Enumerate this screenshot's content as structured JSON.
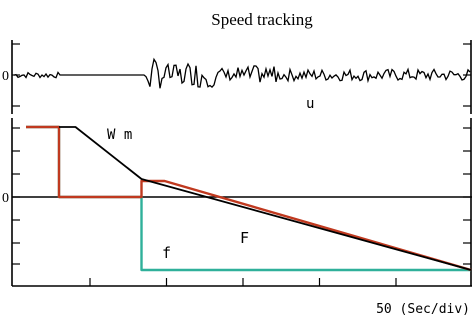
{
  "chart_data": {
    "type": "line",
    "title": "Speed tracking",
    "x_scale_label": "50 (Sec/div)",
    "y_tick_labels": [
      "0",
      "0"
    ],
    "x_divisions": 8,
    "series": [
      {
        "name": "Wm",
        "color": "#000000",
        "x": [
          0,
          0.25,
          1.25,
          7.55,
          8
        ],
        "y": [
          0.7,
          0.7,
          0.18,
          -0.73,
          -0.73
        ]
      },
      {
        "name": "F",
        "color": "#c0391f",
        "x": [
          -0.5,
          0,
          0,
          1.25,
          1.25,
          1.6,
          7.55,
          8
        ],
        "y": [
          0.7,
          0.7,
          0,
          0,
          0.16,
          0.16,
          -0.73,
          -0.73
        ]
      },
      {
        "name": "f",
        "color": "#2fb09a",
        "x": [
          -0.5,
          0,
          0,
          1.25,
          1.25,
          8
        ],
        "y": [
          0.7,
          0.7,
          0,
          0,
          -0.73,
          -0.73
        ]
      },
      {
        "name": "u",
        "color": "#000000",
        "role": "upper-trace noise level",
        "quiet_start": 0,
        "burst_start": 1.3,
        "burst_peak": 2.4,
        "burst_end": 3.3,
        "quiet_amplitude": 0.03,
        "burst_amplitude": 0.18,
        "tail_amplitude": 0.06
      }
    ],
    "annotations": [
      {
        "text": "W m",
        "series": "Wm"
      },
      {
        "text": "F",
        "series": "F"
      },
      {
        "text": "f",
        "series": "f"
      },
      {
        "text": "u",
        "series": "u"
      }
    ],
    "grid": false
  }
}
